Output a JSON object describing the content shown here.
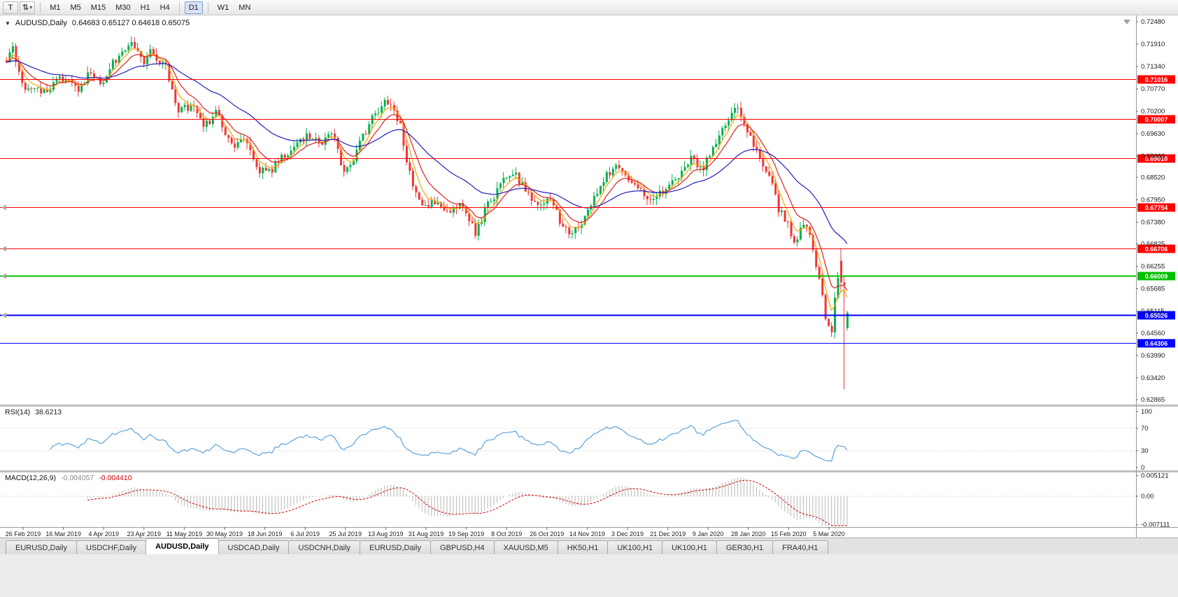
{
  "toolbar": {
    "left_buttons": [
      {
        "glyph": "T"
      },
      {
        "glyph": "⇅",
        "caret": "▾"
      }
    ],
    "timeframes": [
      {
        "label": "M1",
        "active": false
      },
      {
        "label": "M5",
        "active": false
      },
      {
        "label": "M15",
        "active": false
      },
      {
        "label": "M30",
        "active": false
      },
      {
        "label": "H1",
        "active": false
      },
      {
        "label": "H4",
        "active": false
      },
      {
        "label": "D1",
        "active": true
      },
      {
        "label": "W1",
        "active": false
      },
      {
        "label": "MN",
        "active": false
      }
    ]
  },
  "chart": {
    "title_collapse_icon": "▼",
    "title_symbol": "AUDUSD,Daily",
    "title_ohlc": "0.64683 0.65127 0.64618 0.65075",
    "colors": {
      "up": "#00b050",
      "down": "#f03535",
      "bg": "#ffffff",
      "ma_fast": "#ffa500",
      "ma_mid": "#e02020",
      "ma_slow": "#2020c0"
    },
    "y_ticks": [
      "0.72480",
      "0.71910",
      "0.71340",
      "0.70770",
      "0.70200",
      "0.69630",
      "0.69060",
      "0.68520",
      "0.67950",
      "0.67380",
      "0.66825",
      "0.66255",
      "0.65685",
      "0.65115",
      "0.64560",
      "0.63990",
      "0.63420",
      "0.62865"
    ],
    "levels": [
      {
        "price": 0.71016,
        "label": "0.71016",
        "color": "#ff0000",
        "width": 1,
        "left_marker": false
      },
      {
        "price": 0.70007,
        "label": "0.70007",
        "color": "#ff0000",
        "width": 1,
        "left_marker": false
      },
      {
        "price": 0.6901,
        "label": "0.69010",
        "color": "#ff0000",
        "width": 1,
        "left_marker": false
      },
      {
        "price": 0.67754,
        "label": "0.67754",
        "color": "#ff0000",
        "width": 1,
        "left_marker": true
      },
      {
        "price": 0.66706,
        "label": "0.66706",
        "color": "#ff0000",
        "width": 1,
        "left_marker": true
      },
      {
        "price": 0.66009,
        "label": "0.66009",
        "color": "#00c000",
        "width": 2,
        "left_marker": true
      },
      {
        "price": 0.65026,
        "label": "0.65026",
        "color": "#0000ff",
        "width": 2,
        "left_marker": true
      },
      {
        "price": 0.64306,
        "label": "0.64306",
        "color": "#0000ff",
        "width": 1,
        "left_marker": false
      }
    ],
    "dates": [
      "26 Feb 2019",
      "16 Mar 2019",
      "4 Apr 2019",
      "23 Apr 2019",
      "11 May 2019",
      "30 May 2019",
      "18 Jun 2019",
      "6 Jul 2019",
      "25 Jul 2019",
      "13 Aug 2019",
      "31 Aug 2019",
      "19 Sep 2019",
      "8 Oct 2019",
      "26 Oct 2019",
      "14 Nov 2019",
      "3 Dec 2019",
      "21 Dec 2019",
      "9 Jan 2020",
      "28 Jan 2020",
      "15 Feb 2020",
      "5 Mar 2020"
    ],
    "rsi": {
      "name": "RSI(14)",
      "value": "38.6213",
      "levels": [
        "100",
        "70",
        "30",
        "0"
      ],
      "line_color": "#4f9bd5"
    },
    "macd": {
      "name": "MACD(12,26,9)",
      "main_value": "-0.004057",
      "signal_value": "-0.004410",
      "scale": [
        "0.005121",
        "0.00",
        "-0.007111"
      ],
      "hist_color": "#b8b8b8",
      "signal_color": "#d00000"
    }
  },
  "chart_data": {
    "type": "candlestick",
    "symbol": "AUDUSD",
    "timeframe": "Daily",
    "title": "AUDUSD,Daily",
    "x_range": [
      "26 Feb 2019",
      "5 Mar 2020"
    ],
    "y_range": [
      0.6279,
      0.7248
    ],
    "candles_count": 270,
    "noise_seed": 20200311,
    "price_path": [
      [
        0.0,
        0.715
      ],
      [
        0.006,
        0.7188
      ],
      [
        0.02,
        0.7085
      ],
      [
        0.045,
        0.7068
      ],
      [
        0.065,
        0.7105
      ],
      [
        0.085,
        0.7075
      ],
      [
        0.1,
        0.712
      ],
      [
        0.112,
        0.7092
      ],
      [
        0.125,
        0.714
      ],
      [
        0.14,
        0.718
      ],
      [
        0.152,
        0.7192
      ],
      [
        0.162,
        0.7145
      ],
      [
        0.172,
        0.7172
      ],
      [
        0.19,
        0.713
      ],
      [
        0.205,
        0.7018
      ],
      [
        0.22,
        0.7035
      ],
      [
        0.235,
        0.6985
      ],
      [
        0.25,
        0.7015
      ],
      [
        0.268,
        0.693
      ],
      [
        0.282,
        0.696
      ],
      [
        0.298,
        0.6875
      ],
      [
        0.312,
        0.6862
      ],
      [
        0.328,
        0.6905
      ],
      [
        0.342,
        0.693
      ],
      [
        0.358,
        0.6965
      ],
      [
        0.372,
        0.6935
      ],
      [
        0.388,
        0.6972
      ],
      [
        0.402,
        0.6858
      ],
      [
        0.418,
        0.6925
      ],
      [
        0.435,
        0.701
      ],
      [
        0.452,
        0.7048
      ],
      [
        0.468,
        0.6985
      ],
      [
        0.482,
        0.6832
      ],
      [
        0.495,
        0.6772
      ],
      [
        0.512,
        0.6798
      ],
      [
        0.528,
        0.676
      ],
      [
        0.542,
        0.6782
      ],
      [
        0.558,
        0.6712
      ],
      [
        0.572,
        0.6782
      ],
      [
        0.588,
        0.6832
      ],
      [
        0.602,
        0.6868
      ],
      [
        0.618,
        0.682
      ],
      [
        0.632,
        0.6772
      ],
      [
        0.645,
        0.6805
      ],
      [
        0.658,
        0.6742
      ],
      [
        0.672,
        0.6708
      ],
      [
        0.685,
        0.6738
      ],
      [
        0.698,
        0.6795
      ],
      [
        0.712,
        0.6852
      ],
      [
        0.724,
        0.6885
      ],
      [
        0.738,
        0.6852
      ],
      [
        0.752,
        0.6822
      ],
      [
        0.762,
        0.679
      ],
      [
        0.778,
        0.6812
      ],
      [
        0.792,
        0.6842
      ],
      [
        0.805,
        0.6862
      ],
      [
        0.815,
        0.6905
      ],
      [
        0.828,
        0.6872
      ],
      [
        0.842,
        0.6938
      ],
      [
        0.858,
        0.7002
      ],
      [
        0.868,
        0.7032
      ],
      [
        0.878,
        0.6982
      ],
      [
        0.888,
        0.6932
      ],
      [
        0.898,
        0.6895
      ],
      [
        0.908,
        0.6848
      ],
      [
        0.918,
        0.6772
      ],
      [
        0.928,
        0.6738
      ],
      [
        0.938,
        0.6688
      ],
      [
        0.948,
        0.6742
      ],
      [
        0.958,
        0.6682
      ],
      [
        0.966,
        0.6598
      ],
      [
        0.974,
        0.6498
      ],
      [
        0.98,
        0.6442
      ],
      [
        0.988,
        0.6592
      ],
      [
        0.993,
        0.6642
      ],
      [
        0.9965,
        0.6582
      ],
      [
        1.0,
        0.6507
      ]
    ],
    "last_candles": [
      [
        0.664,
        0.6672,
        0.656,
        0.6585
      ],
      [
        0.6585,
        0.66,
        0.6313,
        0.6578
      ],
      [
        0.64683,
        0.65127,
        0.64618,
        0.65075
      ]
    ],
    "moving_averages": [
      {
        "period": 5,
        "color_key": "ma_fast"
      },
      {
        "period": 10,
        "color_key": "ma_mid"
      },
      {
        "period": 34,
        "color_key": "ma_slow"
      }
    ],
    "indicators": {
      "rsi_period": 14,
      "macd": [
        12,
        26,
        9
      ]
    }
  },
  "tabs": [
    {
      "label": "EURUSD,Daily",
      "active": false
    },
    {
      "label": "USDCHF,Daily",
      "active": false
    },
    {
      "label": "AUDUSD,Daily",
      "active": true
    },
    {
      "label": "USDCAD,Daily",
      "active": false
    },
    {
      "label": "USDCNH,Daily",
      "active": false
    },
    {
      "label": "EURUSD,Daily",
      "active": false
    },
    {
      "label": "GBPUSD,H4",
      "active": false
    },
    {
      "label": "XAUUSD,M5",
      "active": false
    },
    {
      "label": "HK50,H1",
      "active": false
    },
    {
      "label": "UK100,H1",
      "active": false
    },
    {
      "label": "UK100,H1",
      "active": false
    },
    {
      "label": "GER30,H1",
      "active": false
    },
    {
      "label": "FRA40,H1",
      "active": false
    }
  ]
}
